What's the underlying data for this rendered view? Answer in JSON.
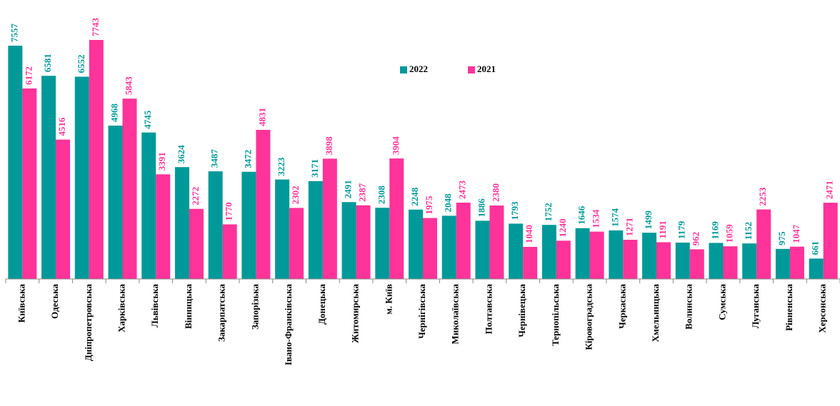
{
  "chart_data": {
    "type": "bar",
    "categories": [
      "Київська",
      "Одеська",
      "Дніпропетровська",
      "Харківська",
      "Львівська",
      "Вінницька",
      "Закарпатська",
      "Запорізька",
      "Івано-Франківська",
      "Донецька",
      "Житомирська",
      "м. Київ",
      "Чернігівська",
      "Миколаївська",
      "Полтавська",
      "Чернівецька",
      "Тернопільська",
      "Кіровоградська",
      "Черкаська",
      "Хмельницька",
      "Волинська",
      "Сумська",
      "Луганська",
      "Рівненська",
      "Херсонська"
    ],
    "series": [
      {
        "name": "2022",
        "color": "#009999",
        "values": [
          7557,
          6581,
          6552,
          4968,
          4745,
          3624,
          3487,
          3472,
          3223,
          3171,
          2491,
          2308,
          2248,
          2048,
          1886,
          1793,
          1752,
          1646,
          1574,
          1499,
          1179,
          1169,
          1152,
          975,
          661
        ]
      },
      {
        "name": "2021",
        "color": "#ff3399",
        "values": [
          6172,
          4516,
          7743,
          5843,
          3391,
          2272,
          1770,
          4831,
          2302,
          3898,
          2387,
          3904,
          1975,
          2473,
          2380,
          1040,
          1240,
          1534,
          1271,
          1191,
          962,
          1059,
          2253,
          1047,
          2471
        ]
      }
    ],
    "legend": "top-center"
  }
}
